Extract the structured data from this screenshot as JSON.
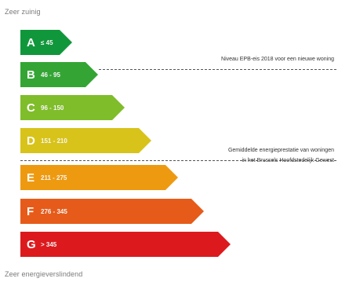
{
  "scale": {
    "top_label": "Zeer zuinig",
    "bottom_label": "Zeer energieverslindend"
  },
  "classes": [
    {
      "letter": "A",
      "range": "≤ 45",
      "color": "#11973b"
    },
    {
      "letter": "B",
      "range": "46 - 95",
      "color": "#34a534"
    },
    {
      "letter": "C",
      "range": "96 - 150",
      "color": "#7fbd2a"
    },
    {
      "letter": "D",
      "range": "151 - 210",
      "color": "#d8c31a"
    },
    {
      "letter": "E",
      "range": "211 - 275",
      "color": "#ee9a10"
    },
    {
      "letter": "F",
      "range": "276 - 345",
      "color": "#e65b1a"
    },
    {
      "letter": "G",
      "range": "> 345",
      "color": "#dc1a1e"
    }
  ],
  "annotations": {
    "epb_level": "Niveau EPB-eis 2018 voor een nieuwe woning",
    "average_line1": "Gemiddelde energieprestatie van woningen",
    "average_line2": "in het Brussels Hoofdstedelijk Gewest"
  }
}
